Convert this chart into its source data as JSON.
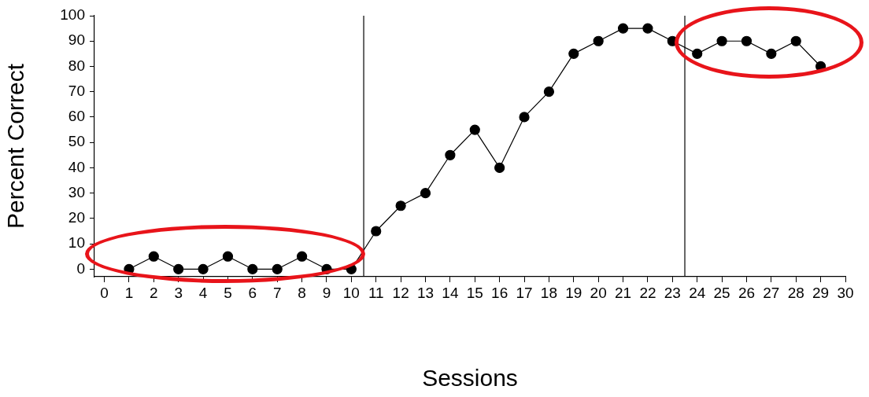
{
  "chart_data": {
    "type": "line",
    "xlabel": "Sessions",
    "ylabel": "Percent Correct",
    "x": [
      1,
      2,
      3,
      4,
      5,
      6,
      7,
      8,
      9,
      10,
      11,
      12,
      13,
      14,
      15,
      16,
      17,
      18,
      19,
      20,
      21,
      22,
      23,
      24,
      25,
      26,
      27,
      28,
      29
    ],
    "series": [
      {
        "color": "#000000",
        "values": [
          0,
          5,
          0,
          0,
          5,
          0,
          0,
          5,
          0,
          0,
          15,
          25,
          30,
          45,
          55,
          40,
          60,
          70,
          85,
          90,
          95,
          95,
          90,
          85,
          90,
          90,
          85,
          90,
          80
        ]
      }
    ],
    "xlim": [
      -0.4,
      30
    ],
    "ylim": [
      -3,
      100
    ],
    "xticks": [
      0,
      1,
      2,
      3,
      4,
      5,
      6,
      7,
      8,
      9,
      10,
      11,
      12,
      13,
      14,
      15,
      16,
      17,
      18,
      19,
      20,
      21,
      22,
      23,
      24,
      25,
      26,
      27,
      28,
      29,
      30
    ],
    "yticks": [
      0,
      10,
      20,
      30,
      40,
      50,
      60,
      70,
      80,
      90,
      100
    ],
    "ref_lines": [
      {
        "axis": "x",
        "value": 10.5,
        "color": "#000000"
      },
      {
        "axis": "x",
        "value": 23.5,
        "color": "#000000"
      }
    ],
    "marker": "circle",
    "line_style": "solid"
  }
}
